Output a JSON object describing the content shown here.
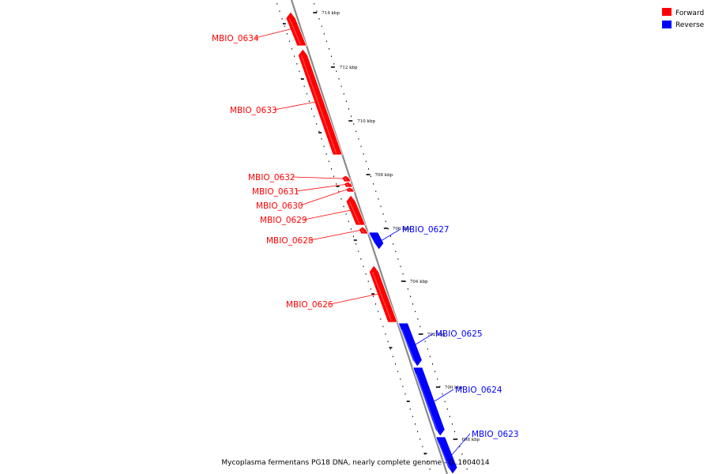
{
  "colors": {
    "forward": "#ff0000",
    "reverse": "#0000ff",
    "backbone": "#8a8a8a",
    "tick": "#000000"
  },
  "legend": {
    "forward_label": "Forward",
    "reverse_label": "Reverse"
  },
  "caption": "Mycoplasma fermentans PG18 DNA, nearly complete genome - 0..1004014",
  "genes": [
    {
      "name": "MBIO_0634",
      "strand": "forward"
    },
    {
      "name": "MBIO_0633",
      "strand": "forward"
    },
    {
      "name": "MBIO_0632",
      "strand": "forward"
    },
    {
      "name": "MBIO_0631",
      "strand": "forward"
    },
    {
      "name": "MBIO_0630",
      "strand": "forward"
    },
    {
      "name": "MBIO_0629",
      "strand": "forward"
    },
    {
      "name": "MBIO_0628",
      "strand": "forward"
    },
    {
      "name": "MBIO_0627",
      "strand": "reverse"
    },
    {
      "name": "MBIO_0626",
      "strand": "forward"
    },
    {
      "name": "MBIO_0625",
      "strand": "reverse"
    },
    {
      "name": "MBIO_0624",
      "strand": "reverse"
    },
    {
      "name": "MBIO_0623",
      "strand": "reverse"
    }
  ],
  "ticks": [
    {
      "label": "714 kbp"
    },
    {
      "label": "712 kbp"
    },
    {
      "label": "710 kbp"
    },
    {
      "label": "708 kbp"
    },
    {
      "label": "706 kbp"
    },
    {
      "label": "704 kbp"
    },
    {
      "label": "702 kbp"
    },
    {
      "label": "700 kbp"
    },
    {
      "label": "698 kbp"
    }
  ]
}
